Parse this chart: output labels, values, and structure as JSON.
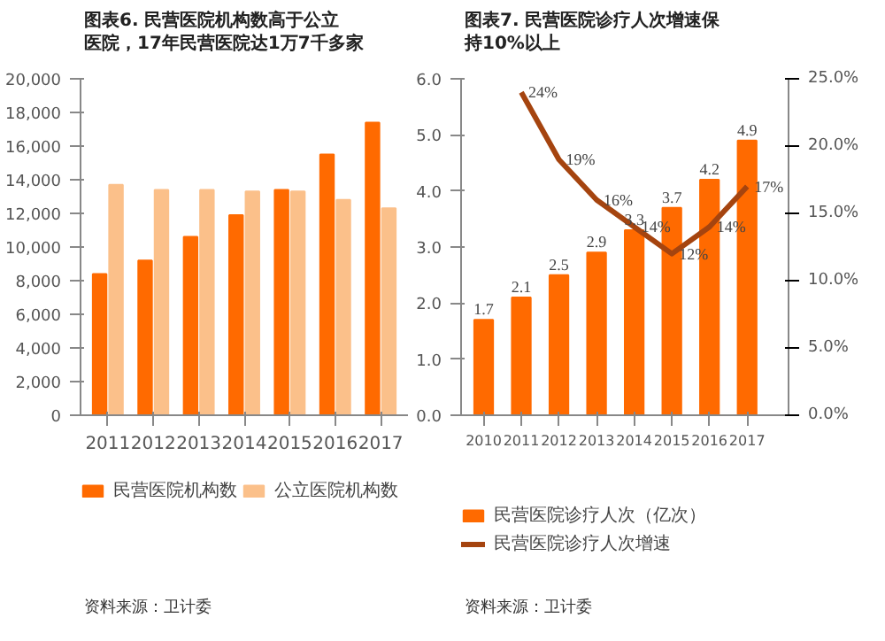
{
  "chart_data": [
    {
      "type": "bar",
      "title": "图表6.  民营医院机构数高于公立医院，17年民营医院达1万7千多家",
      "categories": [
        "2011",
        "2012",
        "2013",
        "2014",
        "2015",
        "2016",
        "2017"
      ],
      "series": [
        {
          "name": "民营医院机构数",
          "color": "#ff6a00",
          "values": [
            8400,
            9200,
            10600,
            11900,
            13400,
            15500,
            17400
          ]
        },
        {
          "name": "公立医院机构数",
          "color": "#fbc08a",
          "values": [
            13700,
            13400,
            13400,
            13300,
            13300,
            12800,
            12300
          ]
        }
      ],
      "ylim": [
        0,
        20000
      ],
      "yticks": [
        {
          "value": 0,
          "label": "0"
        },
        {
          "value": 2000,
          "label": "2,000"
        },
        {
          "value": 4000,
          "label": "4,000"
        },
        {
          "value": 6000,
          "label": "6,000"
        },
        {
          "value": 8000,
          "label": "8,000"
        },
        {
          "value": 10000,
          "label": "10,000"
        },
        {
          "value": 12000,
          "label": "12,000"
        },
        {
          "value": 14000,
          "label": "14,000"
        },
        {
          "value": 16000,
          "label": "16,000"
        },
        {
          "value": 18000,
          "label": "18,000"
        },
        {
          "value": 20000,
          "label": "20,000"
        }
      ],
      "legend": "bottom",
      "grid": false,
      "annotations": [
        "资料来源：卫计委"
      ]
    },
    {
      "type": "bar",
      "title": "图表7.  民营医院诊疗人次增速保持10%以上",
      "categories": [
        "2010",
        "2011",
        "2012",
        "2013",
        "2014",
        "2015",
        "2016",
        "2017"
      ],
      "series": [
        {
          "name": "民营医院诊疗人次（亿次）",
          "color": "#ff6a00",
          "values": [
            1.7,
            2.1,
            2.5,
            2.9,
            3.3,
            3.7,
            4.2,
            4.9
          ],
          "value_labels": [
            "1.7",
            "2.1",
            "2.5",
            "2.9",
            "3.3",
            "3.7",
            "4.2",
            "4.9"
          ]
        },
        {
          "name": "民营医院诊疗人次增速",
          "type": "line",
          "axis": "y2",
          "color": "#a5440f",
          "values": [
            null,
            24,
            19,
            16,
            14,
            12,
            14,
            17
          ],
          "value_labels": [
            null,
            "24%",
            "19%",
            "16%",
            "14%",
            "12%",
            "14%",
            "17%"
          ]
        }
      ],
      "ylim": [
        0,
        6
      ],
      "yticks": [
        {
          "value": 0,
          "label": "0.0"
        },
        {
          "value": 1,
          "label": "1.0"
        },
        {
          "value": 2,
          "label": "2.0"
        },
        {
          "value": 3,
          "label": "3.0"
        },
        {
          "value": 4,
          "label": "4.0"
        },
        {
          "value": 5,
          "label": "5.0"
        },
        {
          "value": 6,
          "label": "6.0"
        }
      ],
      "y2lim": [
        0,
        25
      ],
      "y2ticks": [
        {
          "value": 0,
          "label": "0.0%"
        },
        {
          "value": 5,
          "label": "5.0%"
        },
        {
          "value": 10,
          "label": "10.0%"
        },
        {
          "value": 15,
          "label": "15.0%"
        },
        {
          "value": 20,
          "label": "20.0%"
        },
        {
          "value": 25,
          "label": "25.0%"
        }
      ],
      "legend": "bottom",
      "grid": false,
      "annotations": [
        "资料来源：卫计委"
      ]
    }
  ]
}
